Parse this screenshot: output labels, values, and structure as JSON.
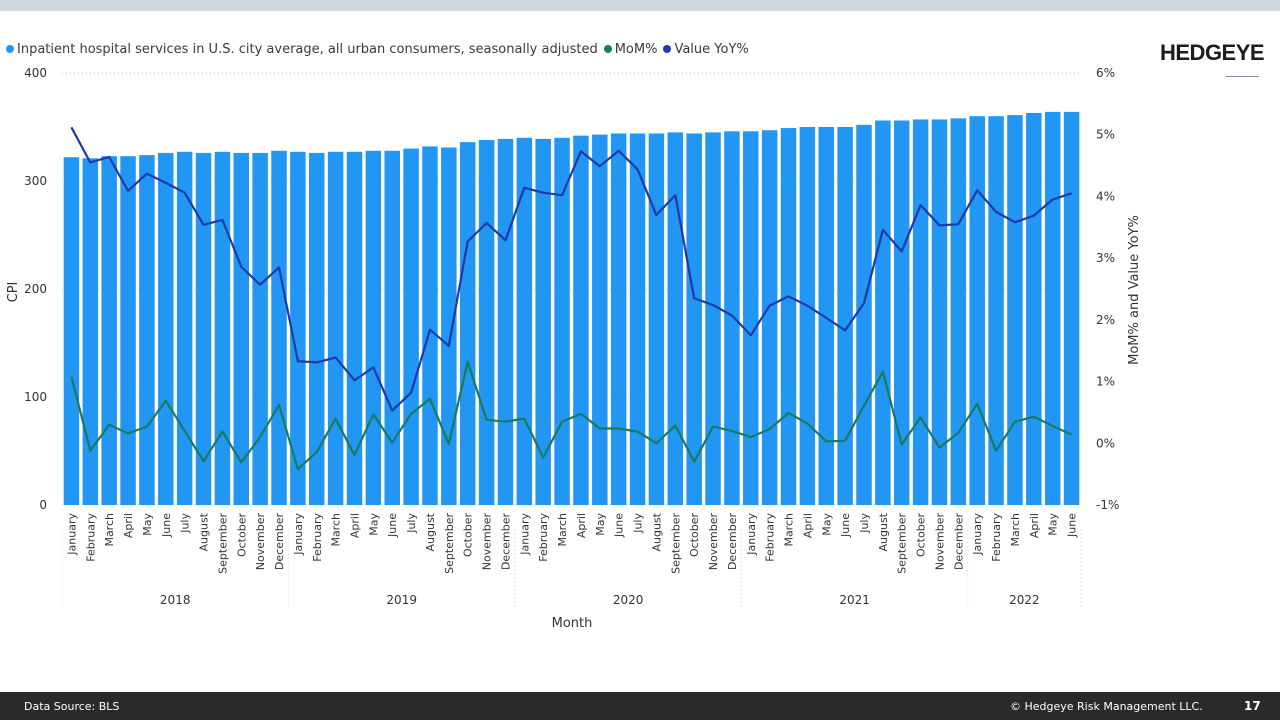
{
  "header": {
    "logo": "HEDGEYE"
  },
  "legend": [
    {
      "label": "Inpatient hospital services in U.S. city average, all urban consumers, seasonally adjusted",
      "color": "#2196f3"
    },
    {
      "label": "MoM%",
      "color": "#1a7a60"
    },
    {
      "label": "Value YoY%",
      "color": "#1f3aa8"
    }
  ],
  "footer": {
    "source": "Data Source: BLS",
    "copyright": "© Hedgeye Risk Management LLC.",
    "page_number": "17"
  },
  "chart_data": {
    "type": "bar",
    "xlabel": "Month",
    "ylabel": "CPI",
    "y2label": "MoM% and Value YoY%",
    "ylim": [
      0,
      400
    ],
    "yticks": [
      "0",
      "100",
      "200",
      "300",
      "400"
    ],
    "y2lim": [
      -1,
      6
    ],
    "y2ticks": [
      "-1%",
      "0%",
      "1%",
      "2%",
      "3%",
      "4%",
      "5%",
      "6%"
    ],
    "years": [
      {
        "label": "2018",
        "months": [
          "January",
          "February",
          "March",
          "April",
          "May",
          "June",
          "July",
          "August",
          "September",
          "October",
          "November",
          "December"
        ]
      },
      {
        "label": "2019",
        "months": [
          "January",
          "February",
          "March",
          "April",
          "May",
          "June",
          "July",
          "August",
          "September",
          "October",
          "November",
          "December"
        ]
      },
      {
        "label": "2020",
        "months": [
          "January",
          "February",
          "March",
          "April",
          "May",
          "June",
          "July",
          "August",
          "September",
          "October",
          "November",
          "December"
        ]
      },
      {
        "label": "2021",
        "months": [
          "January",
          "February",
          "March",
          "April",
          "May",
          "June",
          "July",
          "August",
          "September",
          "October",
          "November",
          "December"
        ]
      },
      {
        "label": "2022",
        "months": [
          "January",
          "February",
          "March",
          "April",
          "May",
          "June"
        ]
      }
    ],
    "series": [
      {
        "name": "Inpatient hospital services in U.S. city average, all urban consumers, seasonally adjusted",
        "axis": "left",
        "type": "bar",
        "color": "#2196f3",
        "values": [
          322,
          321,
          323,
          323,
          324,
          326,
          327,
          326,
          327,
          326,
          326,
          328,
          327,
          326,
          327,
          327,
          328,
          328,
          330,
          332,
          331,
          336,
          338,
          339,
          340,
          339,
          340,
          342,
          343,
          344,
          344,
          344,
          345,
          344,
          345,
          346,
          346,
          347,
          349,
          350,
          350,
          350,
          352,
          356,
          356,
          357,
          357,
          358,
          360,
          360,
          361,
          363,
          364,
          364
        ]
      },
      {
        "name": "MoM%",
        "axis": "right",
        "type": "line",
        "color": "#1a7a60",
        "values": [
          1.08,
          -0.12,
          0.3,
          0.16,
          0.27,
          0.69,
          0.2,
          -0.29,
          0.19,
          -0.31,
          0.1,
          0.62,
          -0.42,
          -0.14,
          0.4,
          -0.19,
          0.47,
          0.01,
          0.48,
          0.72,
          -0.01,
          1.32,
          0.38,
          0.35,
          0.4,
          -0.23,
          0.35,
          0.48,
          0.24,
          0.24,
          0.19,
          0.0,
          0.29,
          -0.3,
          0.27,
          0.2,
          0.1,
          0.23,
          0.49,
          0.32,
          0.03,
          0.04,
          0.61,
          1.16,
          -0.02,
          0.42,
          -0.07,
          0.17,
          0.64,
          -0.12,
          0.35,
          0.43,
          0.28,
          0.14
        ]
      },
      {
        "name": "Value YoY%",
        "axis": "right",
        "type": "line",
        "color": "#1f3aa8",
        "values": [
          5.12,
          4.55,
          4.64,
          4.09,
          4.37,
          4.22,
          4.06,
          3.54,
          3.62,
          2.86,
          2.57,
          2.85,
          1.33,
          1.31,
          1.39,
          1.02,
          1.23,
          0.53,
          0.82,
          1.84,
          1.58,
          3.27,
          3.57,
          3.29,
          4.14,
          4.06,
          4.02,
          4.73,
          4.49,
          4.74,
          4.44,
          3.7,
          4.02,
          2.35,
          2.24,
          2.07,
          1.75,
          2.23,
          2.38,
          2.23,
          2.03,
          1.83,
          2.27,
          3.46,
          3.11,
          3.86,
          3.53,
          3.55,
          4.1,
          3.75,
          3.58,
          3.69,
          3.95,
          4.05
        ]
      }
    ]
  }
}
